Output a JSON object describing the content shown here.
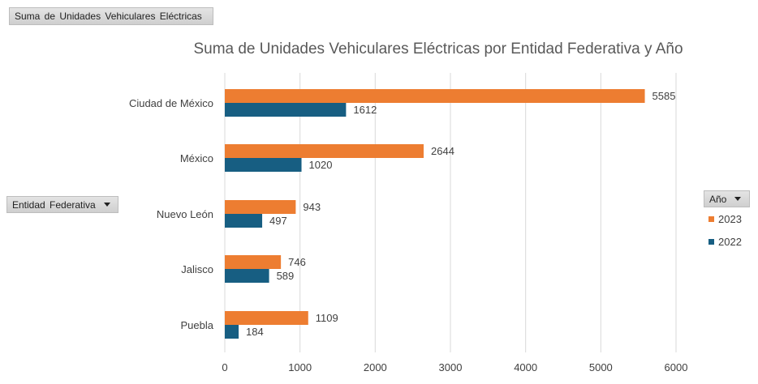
{
  "pivot_buttons": {
    "value_field": "Suma de Unidades Vehiculares Eléctricas",
    "row_field": "Entidad Federativa",
    "legend_field": "Año"
  },
  "chart_data": {
    "type": "bar",
    "orientation": "horizontal",
    "title": "Suma de Unidades Vehiculares Eléctricas por Entidad Federativa y Año",
    "categories": [
      "Ciudad de México",
      "México",
      "Nuevo León",
      "Jalisco",
      "Puebla"
    ],
    "series": [
      {
        "name": "2023",
        "color": "#ed7d31",
        "values": [
          5585,
          2644,
          943,
          746,
          1109
        ]
      },
      {
        "name": "2022",
        "color": "#175e82",
        "values": [
          1612,
          1020,
          497,
          589,
          184
        ]
      }
    ],
    "xlim": [
      0,
      6000
    ],
    "xticks": [
      0,
      1000,
      2000,
      3000,
      4000,
      5000,
      6000
    ],
    "grid": true,
    "legend_position": "right"
  }
}
